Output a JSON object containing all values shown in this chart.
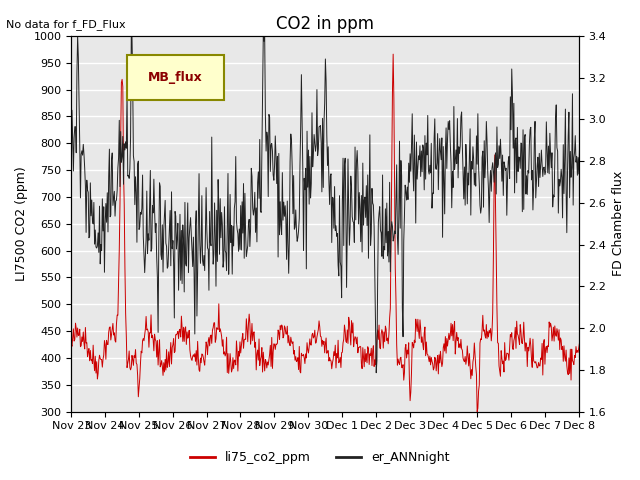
{
  "title": "CO2 in ppm",
  "top_left_text": "No data for f_FD_Flux",
  "ylabel_left": "LI7500 CO2 (ppm)",
  "ylabel_right": "FD Chamber flux",
  "ylim_left": [
    300,
    1000
  ],
  "ylim_right": [
    1.6,
    3.4
  ],
  "xtick_labels": [
    "Nov 23",
    "Nov 24",
    "Nov 25",
    "Nov 26",
    "Nov 27",
    "Nov 28",
    "Nov 29",
    "Nov 30",
    "Dec 1",
    "Dec 2",
    "Dec 3",
    "Dec 4",
    "Dec 5",
    "Dec 6",
    "Dec 7",
    "Dec 8"
  ],
  "legend_entries": [
    "li75_co2_ppm",
    "er_ANNnight"
  ],
  "line1_color": "#cc0000",
  "line2_color": "#222222",
  "legend_box_color": "#ffffcc",
  "legend_box_edge": "#888800",
  "legend_box_text": "MB_flux",
  "background_color": "#e8e8e8",
  "grid_color": "#ffffff",
  "title_fontsize": 12,
  "label_fontsize": 9,
  "tick_fontsize": 8
}
